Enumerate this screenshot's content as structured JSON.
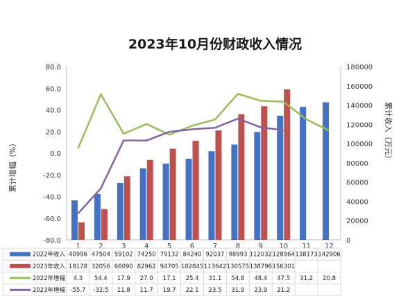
{
  "chart_data": {
    "type": "bar",
    "title": "2023年10月份财政收入情况",
    "y_left_label": "累计增幅（%）",
    "y_right_label": "累计收入（万元）",
    "categories": [
      "1",
      "2",
      "3",
      "4",
      "5",
      "6",
      "7",
      "8",
      "9",
      "10",
      "11",
      "12"
    ],
    "y_left_ticks": [
      "80.0",
      "60.0",
      "40.0",
      "20.0",
      "0.0",
      "-20.0",
      "-40.0",
      "-60.0",
      "-80.0"
    ],
    "y_right_ticks": [
      "180000",
      "160000",
      "140000",
      "120000",
      "100000",
      "80000",
      "60000",
      "40000",
      "20000",
      "0"
    ],
    "y_left_range": [
      -80,
      80
    ],
    "y_right_range": [
      0,
      180000
    ],
    "series": [
      {
        "name": "2022年收入",
        "kind": "bar",
        "axis": "right",
        "color": "#4472C4",
        "values": [
          40996,
          47504,
          59102,
          74250,
          79132,
          84240,
          92037,
          98993,
          112032,
          128964,
          138173,
          142906
        ],
        "labels": [
          "40996",
          "47504",
          "59102",
          "74250",
          "79132",
          "84240",
          "92037",
          "98993",
          "112032",
          "128964",
          "138173",
          "142906"
        ]
      },
      {
        "name": "2023年收入",
        "kind": "bar",
        "axis": "right",
        "color": "#C0504D",
        "values": [
          18178,
          32056,
          66090,
          82962,
          94705,
          102845,
          113642,
          130575,
          138796,
          156301,
          null,
          null
        ],
        "labels": [
          "18178",
          "32056",
          "66090",
          "82962",
          "94705",
          "102845",
          "113642",
          "130575",
          "138796",
          "156301",
          "",
          ""
        ]
      },
      {
        "name": "2022年增幅",
        "kind": "line",
        "axis": "left",
        "color": "#9BBB59",
        "values": [
          4.3,
          54.4,
          17.9,
          27.0,
          17.1,
          25.4,
          31.1,
          54.8,
          48.4,
          47.5,
          31.2,
          20.8
        ],
        "labels": [
          "4.3",
          "54.4",
          "17.9",
          "27.0",
          "17.1",
          "25.4",
          "31.1",
          "54.8",
          "48.4",
          "47.5",
          "31.2",
          "20.8"
        ]
      },
      {
        "name": "2023年增幅",
        "kind": "line",
        "axis": "left",
        "color": "#8064A2",
        "values": [
          -55.7,
          -32.5,
          11.8,
          11.7,
          19.7,
          22.1,
          23.5,
          31.9,
          23.9,
          21.2,
          null,
          null
        ],
        "labels": [
          "-55.7",
          "-32.5",
          "11.8",
          "11.7",
          "19.7",
          "22.1",
          "23.5",
          "31.9",
          "23.9",
          "21.2",
          "",
          ""
        ]
      }
    ],
    "grid": false,
    "legend_placement": "data-table-bottom"
  }
}
